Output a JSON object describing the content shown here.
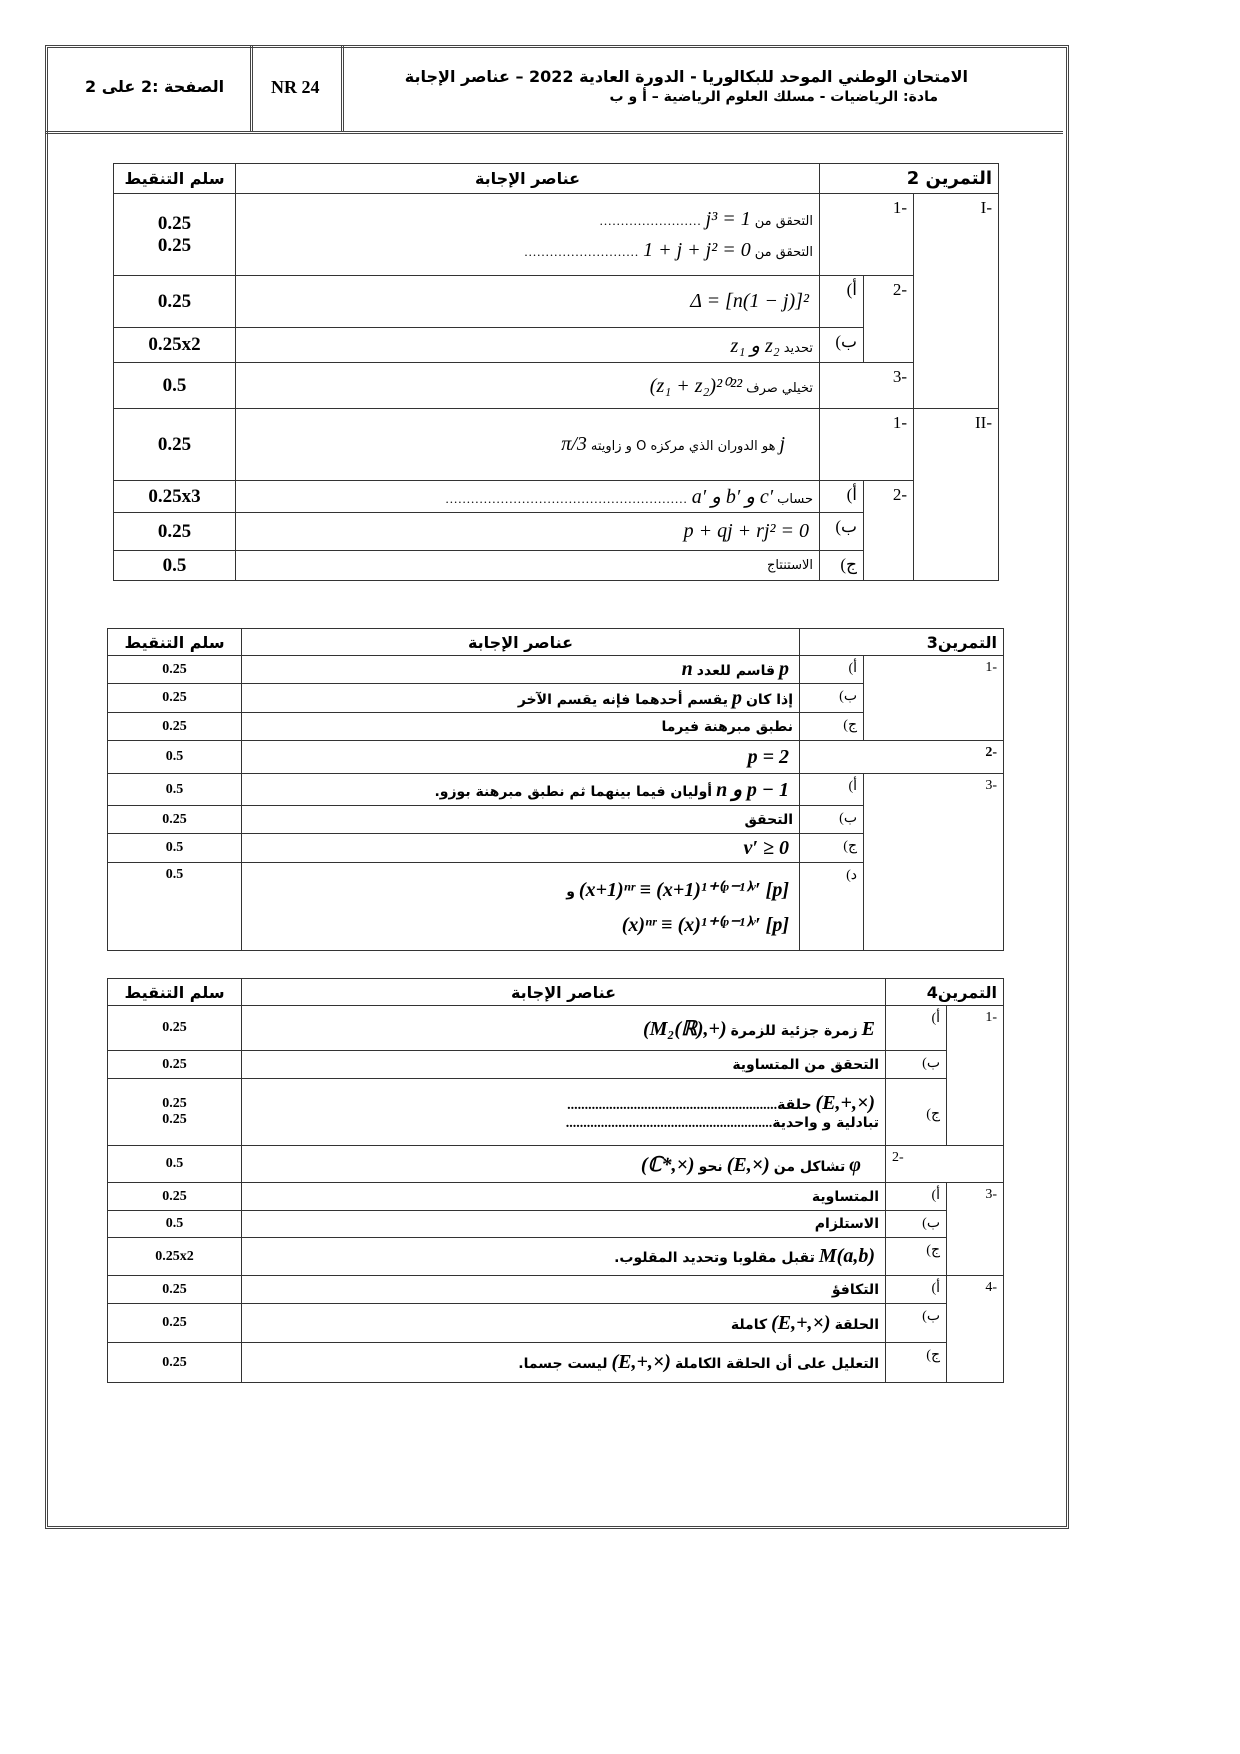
{
  "header": {
    "title": "الامتحان الوطني الموحد للبكالوريا - الدورة العادية 2022 – عناصر الإجابة",
    "subtitle": "مادة: الرياضيات - مسلك العلوم الرياضية – أ و ب",
    "code": "NR 24",
    "page": "الصفحة :2 على 2"
  },
  "cols": {
    "answer": "عناصر الإجابة",
    "score": "سلم التنقيط"
  },
  "ex2": {
    "title": "التمرين 2",
    "labels": {
      "I": "-I",
      "II": "-II",
      "s1": "-1",
      "s2": "-2",
      "s3": "-3",
      "a": "أ)",
      "b": "ب)",
      "c": "ج)"
    },
    "r1": {
      "ar1": "التحقق من",
      "m1": "j³ = 1",
      "d1": "........................",
      "ar2": "التحقق من",
      "m2": "1 + j + j² = 0",
      "d2": "...........................",
      "score1": "0.25",
      "score2": "0.25"
    },
    "r2a": {
      "m": "Δ = [n(1 − j)]²",
      "score": "0.25"
    },
    "r2b": {
      "ar": "تحديد",
      "m": "z₁ و z₂",
      "score": "0.25x2"
    },
    "r3": {
      "m": "(z₁ + z₂)²⁰²²",
      "ar": "تخيلي صرف",
      "score": "0.5"
    },
    "r4": {
      "m1": "j",
      "ar": "هو الدوران الذي مركزه O و زاويته",
      "m2": "π/3",
      "score": "0.25"
    },
    "r5": {
      "ar": "حساب",
      "m": "a′ و b′ و c′",
      "d": ".........................................................",
      "score": "0.25x3"
    },
    "r6": {
      "m": "p + qj + rj² = 0",
      "score": "0.25"
    },
    "r7": {
      "ar": "الاستنتاج",
      "score": "0.5"
    }
  },
  "ex3": {
    "title": "التمرين3",
    "labels": {
      "s1": "-1",
      "s2": "-2",
      "s3": "-3",
      "a": "أ)",
      "b": "ب)",
      "c": "ج)",
      "d": "د)"
    },
    "r1": {
      "m1": "p",
      "ar": "قاسم للعدد",
      "m2": "n",
      "score": "0.25"
    },
    "r2": {
      "ar1": "إذا كان",
      "m": "p",
      "ar2": "يقسم أحدهما فإنه يقسم الآخر",
      "score": "0.25"
    },
    "r3": {
      "ar": "نطبق مبرهنة فيرما",
      "score": "0.25"
    },
    "r4": {
      "m": "p = 2",
      "score": "0.5"
    },
    "r5": {
      "m": "n و p − 1",
      "ar": "أوليان فيما بينهما ثم نطبق مبرهنة بوزو.",
      "score": "0.5"
    },
    "r6": {
      "ar": "التحقق",
      "score": "0.25"
    },
    "r7": {
      "m": "v′ ≥ 0",
      "score": "0.5"
    },
    "r8": {
      "m1": "(x+1)ⁿʳ ≡ (x+1)¹⁺⁽ᵖ⁻¹⁾ᵛ′  [p]",
      "ar": "و",
      "m2": "(x)ⁿʳ ≡ (x)¹⁺⁽ᵖ⁻¹⁾ᵛ′  [p]",
      "score": "0.5"
    }
  },
  "ex4": {
    "title": "التمرين4",
    "labels": {
      "s1": "-1",
      "s2": "-2",
      "s3": "-3",
      "s4": "-4",
      "a": "أ)",
      "b": "ب)",
      "c": "ج)"
    },
    "r1": {
      "m1": "E",
      "ar": "زمرة جزئية للزمرة",
      "m2": "(M₂(ℝ),+)",
      "score": "0.25"
    },
    "r2": {
      "ar": "التحقق من المتساوية",
      "score": "0.25"
    },
    "r3": {
      "m": "(E,+,×)",
      "ar1": "حلقة",
      "d1": "............................................................",
      "ar2": "تبادلية و واحدية",
      "d2": "...........................................................",
      "score1": "0.25",
      "score2": "0.25"
    },
    "r4": {
      "m1": "φ",
      "ar1": "تشاكل من",
      "m2": "(E,×)",
      "ar2": "نحو",
      "m3": "(ℂ*,×)",
      "score": "0.5"
    },
    "r5": {
      "ar": "المتساوية",
      "score": "0.25"
    },
    "r6": {
      "ar": "الاستلزام",
      "score": "0.5"
    },
    "r7": {
      "m": "M(a,b)",
      "ar": "تقبل مقلوبا وتحديد المقلوب.",
      "score": "0.25x2"
    },
    "r8": {
      "ar": "التكافؤ",
      "score": "0.25"
    },
    "r9": {
      "ar1": "الحلقة",
      "m": "(E,+,×)",
      "ar2": "كاملة",
      "score": "0.25"
    },
    "r10": {
      "ar1": "التعليل على أن الحلقة الكاملة",
      "m": "(E,+,×)",
      "ar2": "ليست جسما.",
      "score": "0.25"
    }
  }
}
